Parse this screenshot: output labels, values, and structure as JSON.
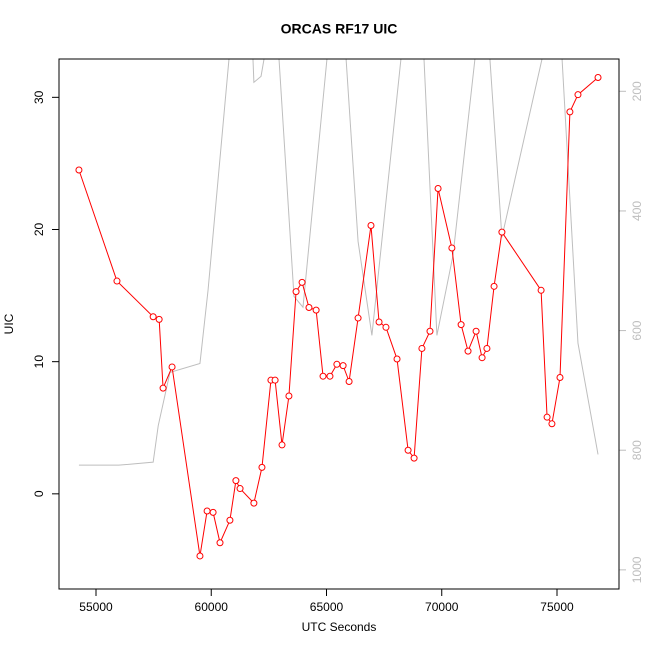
{
  "chart_data": {
    "type": "line",
    "title": "ORCAS RF17 UIC",
    "x_label": "UTC Seconds",
    "y_label": "UIC",
    "xlim": [
      53395,
      77690
    ],
    "xticks": [
      55000,
      60000,
      65000,
      70000,
      75000
    ],
    "ylim": [
      -7.2,
      32.9
    ],
    "yticks": [
      0,
      10,
      20,
      30
    ],
    "y2lim": [
      1032,
      146
    ],
    "y2ticks": [
      200,
      400,
      600,
      800,
      1000
    ],
    "y2_color": "#bebebe",
    "series": [
      {
        "color": "#ff0000",
        "markers": true,
        "x": [
          54260,
          55910,
          57480,
          57740,
          57910,
          58300,
          59510,
          59820,
          60080,
          60380,
          60810,
          61070,
          61250,
          61850,
          62200,
          62590,
          62770,
          63070,
          63370,
          63680,
          63940,
          64240,
          64550,
          64850,
          65150,
          65450,
          65720,
          65980,
          66370,
          66930,
          67280,
          67580,
          68060,
          68540,
          68800,
          69140,
          69490,
          69840,
          70440,
          70840,
          71140,
          71490,
          71750,
          71960,
          72270,
          72610,
          74310,
          74570,
          74780,
          75130,
          75560,
          75910,
          76780
        ],
        "values": [
          24.5,
          16.1,
          13.4,
          13.2,
          8.0,
          9.6,
          -4.7,
          -1.3,
          -1.4,
          -3.7,
          -2.0,
          1.0,
          0.4,
          -0.7,
          2.0,
          8.6,
          8.6,
          3.7,
          7.4,
          15.3,
          16.0,
          14.1,
          13.9,
          8.9,
          8.9,
          9.8,
          9.7,
          8.5,
          13.3,
          20.3,
          13.0,
          12.6,
          10.2,
          3.3,
          2.7,
          11.0,
          12.3,
          23.1,
          18.6,
          12.8,
          10.8,
          12.3,
          10.3,
          11.0,
          15.7,
          19.8,
          15.4,
          5.8,
          5.3,
          8.8,
          28.9,
          30.2,
          31.5
        ]
      },
      {
        "color": "#bebebe",
        "axis": "y2",
        "markers": false,
        "x": [
          54260,
          55990,
          57480,
          57700,
          58210,
          59510,
          59860,
          60770,
          61810,
          61850,
          62160,
          62290,
          62940,
          63590,
          63980,
          65020,
          65850,
          66370,
          66970,
          68230,
          69230,
          69790,
          70490,
          71440,
          72090,
          72610,
          74350,
          75220,
          75910,
          76780
        ],
        "values": [
          825,
          825,
          820,
          759,
          670,
          655,
          533,
          146,
          146,
          185,
          175,
          146,
          146,
          543,
          561,
          146,
          146,
          451,
          608,
          146,
          146,
          608,
          474,
          146,
          146,
          444,
          146,
          146,
          621,
          807
        ]
      }
    ]
  }
}
